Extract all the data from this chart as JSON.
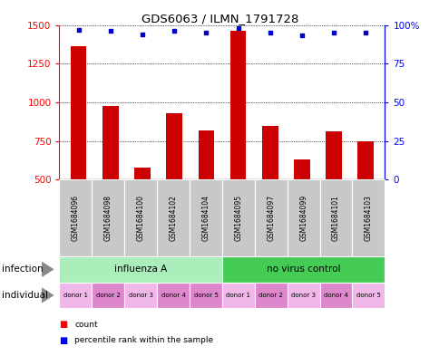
{
  "title": "GDS6063 / ILMN_1791728",
  "samples": [
    "GSM1684096",
    "GSM1684098",
    "GSM1684100",
    "GSM1684102",
    "GSM1684104",
    "GSM1684095",
    "GSM1684097",
    "GSM1684099",
    "GSM1684101",
    "GSM1684103"
  ],
  "counts": [
    1360,
    975,
    580,
    930,
    820,
    1460,
    850,
    630,
    810,
    750
  ],
  "percentiles": [
    97,
    96,
    94,
    96,
    95,
    98,
    95,
    93,
    95,
    95
  ],
  "ylim_left": [
    500,
    1500
  ],
  "ylim_right": [
    0,
    100
  ],
  "yticks_left": [
    500,
    750,
    1000,
    1250,
    1500
  ],
  "yticks_right": [
    0,
    25,
    50,
    75,
    100
  ],
  "bar_color": "#cc0000",
  "dot_color": "#0000cc",
  "infection_groups": [
    {
      "label": "influenza A",
      "start": 0,
      "end": 5,
      "color": "#aaeebb"
    },
    {
      "label": "no virus control",
      "start": 5,
      "end": 10,
      "color": "#44cc55"
    }
  ],
  "individual_labels": [
    "donor 1",
    "donor 2",
    "donor 3",
    "donor 4",
    "donor 5",
    "donor 1",
    "donor 2",
    "donor 3",
    "donor 4",
    "donor 5"
  ],
  "ind_colors_alt": [
    "#f0b8e8",
    "#dd88cc",
    "#f0b8e8",
    "#dd88cc",
    "#dd88cc",
    "#f0b8e8",
    "#dd88cc",
    "#f0b8e8",
    "#dd88cc",
    "#f0b8e8"
  ],
  "bg_color": "#ffffff",
  "bar_width": 0.5,
  "sample_bg_color": "#c8c8c8"
}
